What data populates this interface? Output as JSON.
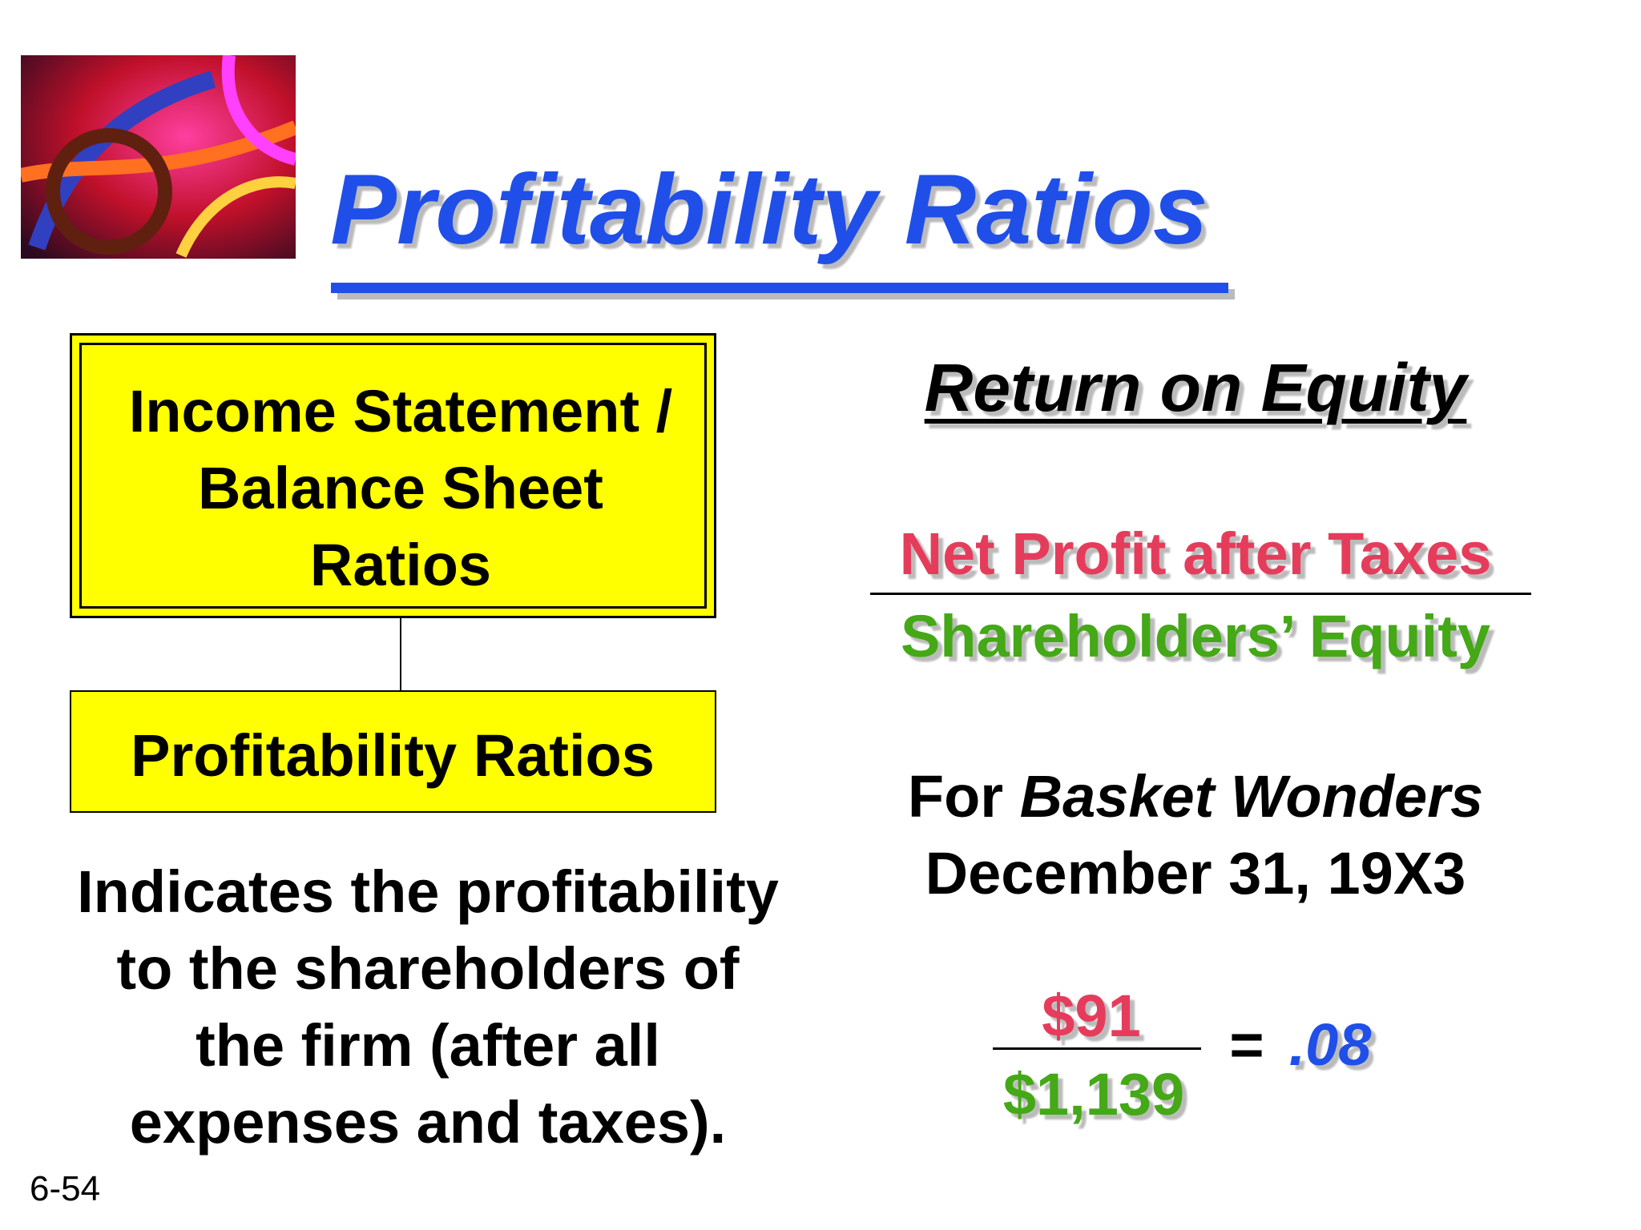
{
  "header": {
    "title": "Profitability Ratios"
  },
  "left": {
    "box_lines": [
      "Income Statement /",
      "Balance Sheet",
      "Ratios"
    ],
    "sub_box": "Profitability Ratios",
    "description": [
      "Indicates the profitability",
      "to the shareholders of",
      "the firm (after all",
      "expenses and taxes)."
    ]
  },
  "right": {
    "heading": "Return on Equity",
    "numerator": "Net Profit after Taxes",
    "denominator": "Shareholders’ Equity",
    "for_prefix": "For",
    "company": "Basket Wonders",
    "date": "December 31, 19X3",
    "calc": {
      "numerator": "$91",
      "denominator": "$1,139",
      "equals": "=",
      "result": ".08"
    }
  },
  "footer": {
    "slide_number": "6-54"
  }
}
